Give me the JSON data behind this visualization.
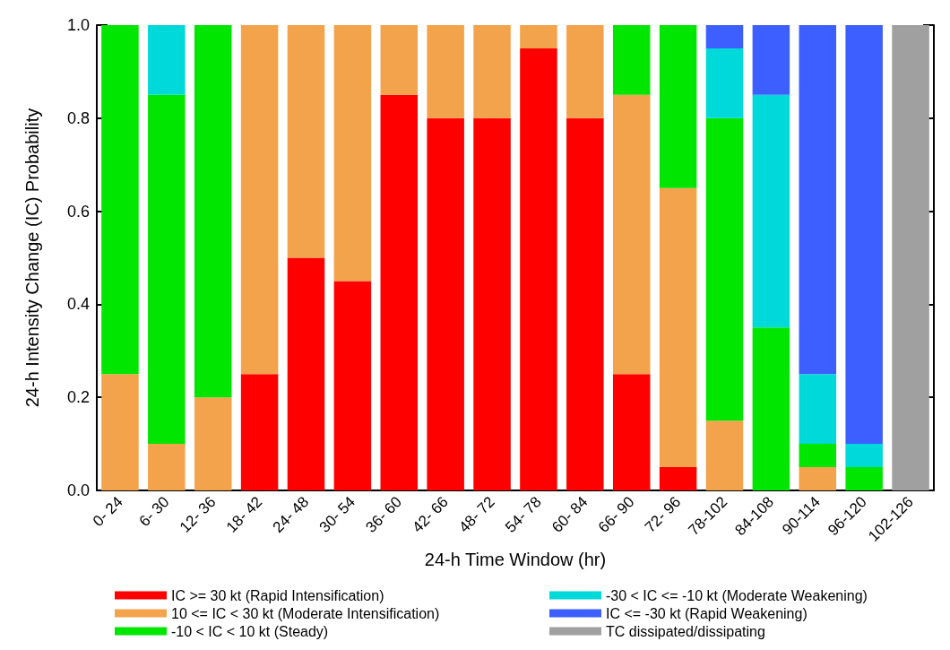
{
  "chart_data": {
    "type": "bar",
    "stacked": true,
    "xlabel": "24-h Time Window (hr)",
    "ylabel": "24-h Intensity Change (IC) Probability",
    "categories": [
      "0- 24",
      "6- 30",
      "12- 36",
      "18- 42",
      "24- 48",
      "30- 54",
      "36- 60",
      "42- 66",
      "48- 72",
      "54- 78",
      "60- 84",
      "66- 90",
      "72- 96",
      "78-102",
      "84-108",
      "90-114",
      "96-120",
      "102-126"
    ],
    "series": [
      {
        "name": "IC >= 30 kt (Rapid Intensification)",
        "color": "#fe0000",
        "values": [
          0,
          0,
          0,
          0.25,
          0.5,
          0.45,
          0.85,
          0.8,
          0.8,
          0.95,
          0.8,
          0.25,
          0.05,
          0,
          0,
          0,
          0,
          0
        ]
      },
      {
        "name": "10 <= IC < 30 kt (Moderate Intensification)",
        "color": "#f2a34c",
        "values": [
          0.25,
          0.1,
          0.2,
          0.75,
          0.5,
          0.55,
          0.15,
          0.2,
          0.2,
          0.05,
          0.2,
          0.6,
          0.6,
          0.15,
          0,
          0.05,
          0,
          0
        ]
      },
      {
        "name": "-10 < IC < 10 kt (Steady)",
        "color": "#00e600",
        "values": [
          0.75,
          0.75,
          0.8,
          0,
          0,
          0,
          0,
          0,
          0,
          0,
          0,
          0.15,
          0.35,
          0.65,
          0.35,
          0.05,
          0.05,
          0
        ]
      },
      {
        "name": "-30 < IC <= -10 kt (Moderate Weakening)",
        "color": "#00d9da",
        "values": [
          0,
          0.15,
          0,
          0,
          0,
          0,
          0,
          0,
          0,
          0,
          0,
          0,
          0,
          0.15,
          0.5,
          0.15,
          0.05,
          0
        ]
      },
      {
        "name": "IC <= -30 kt (Rapid Weakening)",
        "color": "#3d5fff",
        "values": [
          0,
          0,
          0,
          0,
          0,
          0,
          0,
          0,
          0,
          0,
          0,
          0,
          0,
          0.05,
          0.15,
          0.75,
          0.9,
          0
        ]
      },
      {
        "name": "TC dissipated/dissipating",
        "color": "#a0a0a0",
        "values": [
          0,
          0,
          0,
          0,
          0,
          0,
          0,
          0,
          0,
          0,
          0,
          0,
          0,
          0,
          0,
          0,
          0,
          1
        ]
      }
    ],
    "ylim": [
      0,
      1
    ],
    "yticks": [
      {
        "value": 0,
        "label": "0.0"
      },
      0.2,
      0.4,
      0.6,
      0.8,
      {
        "value": 1,
        "label": "1.0"
      }
    ],
    "grid": false,
    "legend": "bottom"
  }
}
